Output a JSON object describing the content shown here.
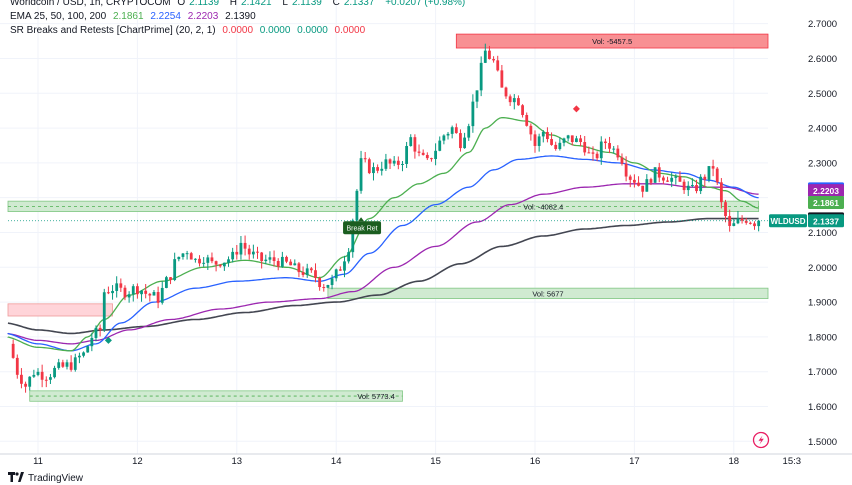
{
  "header": {
    "symbol": "Worldcoin / USD, 1h, CRYPTOCOM",
    "ohlc": {
      "o_label": "O",
      "o": "2.1139",
      "h_label": "H",
      "h": "2.1421",
      "l_label": "L",
      "l": "2.1139",
      "c_label": "C",
      "c": "2.1337",
      "change": "+0.0207 (+0.98%)"
    },
    "ema_label": "EMA 25, 50, 100, 200",
    "ema_values": [
      "2.1861",
      "2.2254",
      "2.2203",
      "2.1390"
    ],
    "sr_label": "SR Breaks and Retests [ChartPrime] (20, 2, 1)",
    "sr_values": [
      "0.0000",
      "0.0000",
      "0.0000",
      "0.0000"
    ]
  },
  "brand": {
    "name": "TradingView"
  },
  "colors": {
    "up": "#089981",
    "down": "#f23645",
    "ema25": "#4caf50",
    "ema50": "#2962ff",
    "ema100": "#9c27b0",
    "ema200": "#434651",
    "grid": "#f0f3fa",
    "zone_green": "#c8e6c9",
    "zone_red": "#ffcdd2",
    "zone_red_strong": "#f77c80"
  },
  "chart_data": {
    "type": "candlestick",
    "symbol": "WLDUSD",
    "y_ticks": [
      "2.7000",
      "2.6000",
      "2.5000",
      "2.4000",
      "2.3000",
      "2.2000",
      "2.1000",
      "2.0000",
      "1.9000",
      "1.8000",
      "1.7000",
      "1.6000",
      "1.5000"
    ],
    "ylim": [
      1.475,
      2.745
    ],
    "x_ticks": [
      {
        "label": "11",
        "t": 0
      },
      {
        "label": "12",
        "t": 24
      },
      {
        "label": "13",
        "t": 48
      },
      {
        "label": "14",
        "t": 72
      },
      {
        "label": "15",
        "t": 96
      },
      {
        "label": "16",
        "t": 120
      },
      {
        "label": "17",
        "t": 144
      },
      {
        "label": "18",
        "t": 168
      },
      {
        "label": "15:3",
        "t": 182
      }
    ],
    "price_tags": [
      {
        "label": "2.2254",
        "value": 2.2254,
        "color": "#2962ff"
      },
      {
        "label": "2.2203",
        "value": 2.2203,
        "color": "#9c27b0"
      },
      {
        "label": "2.1861",
        "value": 2.1861,
        "color": "#4caf50"
      },
      {
        "label": "2.1390",
        "value": 2.139,
        "color": "#131722"
      },
      {
        "label": "2.1337",
        "value": 2.1337,
        "color": "#089981",
        "symbol": "WLDUSD"
      }
    ],
    "keypoints": [
      [
        -7,
        1.78
      ],
      [
        -6,
        1.74
      ],
      [
        -5,
        1.7
      ],
      [
        -4,
        1.68
      ],
      [
        -3,
        1.66
      ],
      [
        -1,
        1.7
      ],
      [
        2,
        1.69
      ],
      [
        5,
        1.71
      ],
      [
        8,
        1.72
      ],
      [
        11,
        1.75
      ],
      [
        13,
        1.8
      ],
      [
        15,
        1.82
      ],
      [
        16,
        1.93
      ],
      [
        18,
        1.94
      ],
      [
        21,
        1.93
      ],
      [
        24,
        1.94
      ],
      [
        27,
        1.92
      ],
      [
        29,
        1.91
      ],
      [
        31,
        1.96
      ],
      [
        34,
        2.03
      ],
      [
        36,
        2.05
      ],
      [
        38,
        2.02
      ],
      [
        40,
        2.03
      ],
      [
        42,
        2.01
      ],
      [
        45,
        2.02
      ],
      [
        47,
        2.03
      ],
      [
        49,
        2.07
      ],
      [
        51,
        2.04
      ],
      [
        54,
        2.02
      ],
      [
        57,
        2.02
      ],
      [
        60,
        2.01
      ],
      [
        63,
        1.99
      ],
      [
        66,
        1.98
      ],
      [
        69,
        1.95
      ],
      [
        71,
        1.96
      ],
      [
        73,
        2.0
      ],
      [
        75,
        2.06
      ],
      [
        76,
        2.14
      ],
      [
        78,
        2.3
      ],
      [
        81,
        2.28
      ],
      [
        84,
        2.3
      ],
      [
        86,
        2.29
      ],
      [
        88,
        2.31
      ],
      [
        90,
        2.37
      ],
      [
        92,
        2.32
      ],
      [
        94,
        2.3
      ],
      [
        96,
        2.34
      ],
      [
        98,
        2.38
      ],
      [
        100,
        2.4
      ],
      [
        102,
        2.36
      ],
      [
        104,
        2.42
      ],
      [
        106,
        2.52
      ],
      [
        108,
        2.62
      ],
      [
        110,
        2.59
      ],
      [
        112,
        2.51
      ],
      [
        114,
        2.49
      ],
      [
        116,
        2.48
      ],
      [
        118,
        2.42
      ],
      [
        120,
        2.35
      ],
      [
        122,
        2.39
      ],
      [
        125,
        2.34
      ],
      [
        128,
        2.37
      ],
      [
        131,
        2.36
      ],
      [
        134,
        2.31
      ],
      [
        137,
        2.36
      ],
      [
        140,
        2.33
      ],
      [
        143,
        2.26
      ],
      [
        146,
        2.23
      ],
      [
        149,
        2.27
      ],
      [
        152,
        2.26
      ],
      [
        155,
        2.24
      ],
      [
        158,
        2.22
      ],
      [
        161,
        2.26
      ],
      [
        163,
        2.29
      ],
      [
        165,
        2.18
      ],
      [
        167,
        2.11
      ],
      [
        169,
        2.13
      ],
      [
        171,
        2.14
      ],
      [
        173,
        2.13
      ],
      [
        174,
        2.1337
      ]
    ],
    "ema25_points": [
      [
        -8,
        1.8
      ],
      [
        0,
        1.77
      ],
      [
        8,
        1.76
      ],
      [
        12,
        1.8
      ],
      [
        16,
        1.85
      ],
      [
        22,
        1.92
      ],
      [
        30,
        1.96
      ],
      [
        40,
        2.0
      ],
      [
        50,
        2.02
      ],
      [
        60,
        2.0
      ],
      [
        68,
        1.97
      ],
      [
        74,
        2.03
      ],
      [
        80,
        2.14
      ],
      [
        86,
        2.2
      ],
      [
        92,
        2.24
      ],
      [
        98,
        2.27
      ],
      [
        104,
        2.33
      ],
      [
        108,
        2.4
      ],
      [
        112,
        2.43
      ],
      [
        118,
        2.42
      ],
      [
        124,
        2.38
      ],
      [
        130,
        2.35
      ],
      [
        138,
        2.33
      ],
      [
        144,
        2.3
      ],
      [
        150,
        2.27
      ],
      [
        156,
        2.26
      ],
      [
        162,
        2.23
      ],
      [
        166,
        2.22
      ],
      [
        170,
        2.19
      ],
      [
        174,
        2.17
      ]
    ],
    "ema50_points": [
      [
        -8,
        1.81
      ],
      [
        0,
        1.78
      ],
      [
        8,
        1.76
      ],
      [
        14,
        1.78
      ],
      [
        20,
        1.84
      ],
      [
        28,
        1.9
      ],
      [
        38,
        1.94
      ],
      [
        48,
        1.96
      ],
      [
        60,
        1.97
      ],
      [
        68,
        1.96
      ],
      [
        74,
        1.98
      ],
      [
        80,
        2.04
      ],
      [
        88,
        2.12
      ],
      [
        96,
        2.18
      ],
      [
        104,
        2.23
      ],
      [
        110,
        2.28
      ],
      [
        116,
        2.31
      ],
      [
        124,
        2.32
      ],
      [
        132,
        2.31
      ],
      [
        140,
        2.3
      ],
      [
        148,
        2.28
      ],
      [
        156,
        2.27
      ],
      [
        162,
        2.25
      ],
      [
        168,
        2.23
      ],
      [
        174,
        2.2
      ]
    ],
    "ema100_points": [
      [
        -8,
        1.81
      ],
      [
        0,
        1.79
      ],
      [
        8,
        1.78
      ],
      [
        14,
        1.79
      ],
      [
        22,
        1.82
      ],
      [
        32,
        1.85
      ],
      [
        44,
        1.88
      ],
      [
        56,
        1.9
      ],
      [
        68,
        1.91
      ],
      [
        76,
        1.93
      ],
      [
        86,
        2.0
      ],
      [
        96,
        2.06
      ],
      [
        106,
        2.13
      ],
      [
        114,
        2.18
      ],
      [
        122,
        2.21
      ],
      [
        132,
        2.23
      ],
      [
        142,
        2.24
      ],
      [
        150,
        2.24
      ],
      [
        158,
        2.23
      ],
      [
        166,
        2.23
      ],
      [
        174,
        2.21
      ]
    ],
    "ema200_points": [
      [
        -8,
        1.84
      ],
      [
        0,
        1.82
      ],
      [
        8,
        1.81
      ],
      [
        16,
        1.82
      ],
      [
        26,
        1.83
      ],
      [
        38,
        1.85
      ],
      [
        50,
        1.87
      ],
      [
        62,
        1.89
      ],
      [
        72,
        1.9
      ],
      [
        82,
        1.92
      ],
      [
        92,
        1.96
      ],
      [
        102,
        2.01
      ],
      [
        112,
        2.06
      ],
      [
        122,
        2.09
      ],
      [
        132,
        2.11
      ],
      [
        142,
        2.12
      ],
      [
        152,
        2.13
      ],
      [
        162,
        2.14
      ],
      [
        174,
        2.14
      ]
    ],
    "zones": [
      {
        "t0": 101,
        "t1": 182,
        "top": 2.67,
        "bottom": 2.63,
        "kind": "red-strong",
        "label": "Vol: -5457.5"
      },
      {
        "t0": -8,
        "t1": 174,
        "top": 2.19,
        "bottom": 2.16,
        "kind": "green",
        "label": "Vol: -4082.4"
      },
      {
        "t0": 70,
        "t1": 182,
        "top": 1.94,
        "bottom": 1.91,
        "kind": "green",
        "label": "Vol: 5677"
      },
      {
        "t0": -8,
        "t1": 18,
        "top": 1.895,
        "bottom": 1.86,
        "kind": "red",
        "label": ""
      },
      {
        "t0": -2,
        "t1": 88,
        "top": 1.645,
        "bottom": 1.615,
        "kind": "green",
        "label": "Vol: 5773.4"
      }
    ],
    "annotations": [
      {
        "text": "Break Ret",
        "t": 78,
        "value": 2.115
      }
    ],
    "markers": [
      {
        "shape": "diamond-green",
        "t": 17,
        "value": 1.79
      },
      {
        "shape": "diamond-red",
        "t": 130,
        "value": 2.455
      }
    ]
  }
}
